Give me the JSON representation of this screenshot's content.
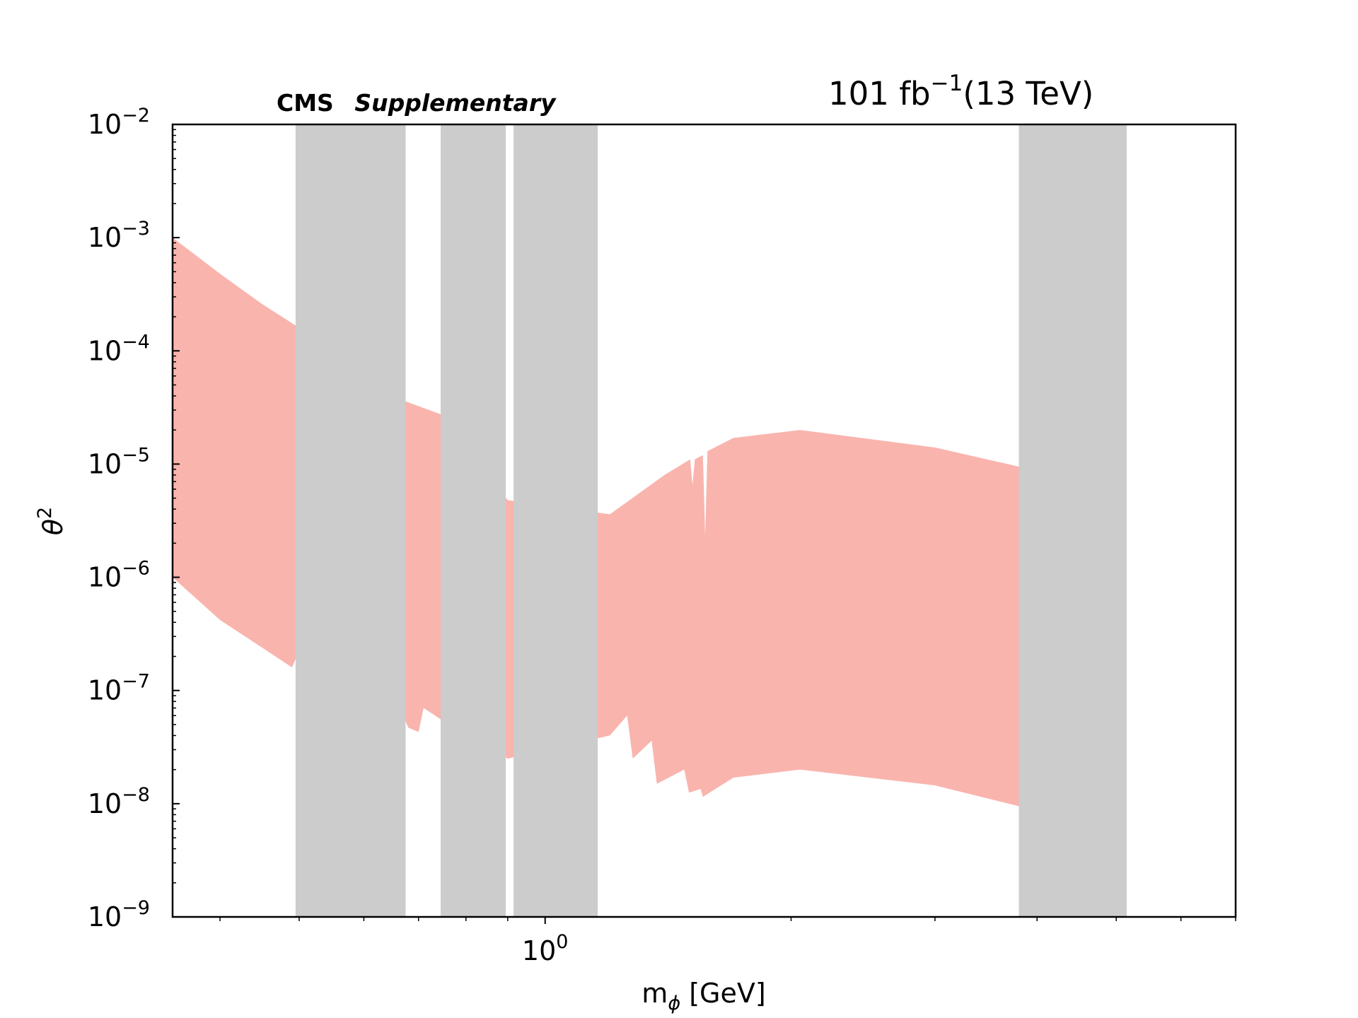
{
  "chart_data": {
    "type": "area",
    "experiment_label": "CMS",
    "status_label": "Supplementary",
    "lumi_label": {
      "value": "101 fb",
      "exponent": "−1",
      "energy": "(13 TeV)"
    },
    "xlabel": {
      "base": "m",
      "subscript": "ϕ",
      "unit": " [GeV]"
    },
    "ylabel": {
      "base": "θ",
      "superscript": "2"
    },
    "xscale": "log",
    "yscale": "log",
    "xlim": [
      0.35,
      7.0
    ],
    "ylim": [
      1e-09,
      0.01
    ],
    "x_tick_labels": [
      {
        "value": 1.0,
        "base": "10",
        "exp": "0"
      }
    ],
    "y_tick_labels": [
      {
        "value": 1e-09,
        "base": "10",
        "exp": "−9"
      },
      {
        "value": 1e-08,
        "base": "10",
        "exp": "−8"
      },
      {
        "value": 1e-07,
        "base": "10",
        "exp": "−7"
      },
      {
        "value": 1e-06,
        "base": "10",
        "exp": "−6"
      },
      {
        "value": 1e-05,
        "base": "10",
        "exp": "−5"
      },
      {
        "value": 0.0001,
        "base": "10",
        "exp": "−4"
      },
      {
        "value": 0.001,
        "base": "10",
        "exp": "−3"
      },
      {
        "value": 0.01,
        "base": "10",
        "exp": "−2"
      }
    ],
    "fill_color": "#f9b4ae",
    "veto_color": "#cccccc",
    "excluded_region": {
      "upper": [
        [
          0.35,
          0.001
        ],
        [
          0.4,
          0.00048
        ],
        [
          0.45,
          0.00026
        ],
        [
          0.5,
          0.00016
        ],
        [
          0.66,
          3.8e-05
        ],
        [
          0.75,
          2.7e-05
        ],
        [
          0.9,
          4.8e-06
        ],
        [
          1.2,
          3.6e-06
        ],
        [
          1.4,
          8e-06
        ],
        [
          1.505,
          1.1e-05
        ],
        [
          1.515,
          6.5e-06
        ],
        [
          1.525,
          1.1e-05
        ],
        [
          1.56,
          1.2e-05
        ],
        [
          1.57,
          2.3e-06
        ],
        [
          1.58,
          1.3e-05
        ],
        [
          1.7,
          1.7e-05
        ],
        [
          2.05,
          2e-05
        ],
        [
          3.0,
          1.4e-05
        ],
        [
          3.8,
          9.5e-06
        ]
      ],
      "lower": [
        [
          0.35,
          1e-06
        ],
        [
          0.4,
          4.2e-07
        ],
        [
          0.45,
          2.4e-07
        ],
        [
          0.49,
          1.6e-07
        ],
        [
          0.495,
          1.9e-07
        ],
        [
          0.5,
          2.9e-07
        ],
        [
          0.505,
          1.3e-07
        ],
        [
          0.66,
          8e-08
        ],
        [
          0.68,
          4.7e-08
        ],
        [
          0.7,
          4.3e-08
        ],
        [
          0.71,
          7e-08
        ],
        [
          0.75,
          5.4e-08
        ],
        [
          0.9,
          2.5e-08
        ],
        [
          1.2,
          4e-08
        ],
        [
          1.26,
          6e-08
        ],
        [
          1.28,
          2.5e-08
        ],
        [
          1.35,
          3.6e-08
        ],
        [
          1.37,
          1.5e-08
        ],
        [
          1.48,
          2e-08
        ],
        [
          1.5,
          1.25e-08
        ],
        [
          1.55,
          1.35e-08
        ],
        [
          1.56,
          1.15e-08
        ],
        [
          1.7,
          1.7e-08
        ],
        [
          2.05,
          2e-08
        ],
        [
          3.0,
          1.45e-08
        ],
        [
          3.8,
          9.5e-09
        ]
      ]
    },
    "vetoed_mass_windows": [
      [
        0.495,
        0.675
      ],
      [
        0.745,
        0.895
      ],
      [
        0.915,
        1.16
      ],
      [
        3.8,
        5.15
      ]
    ]
  }
}
